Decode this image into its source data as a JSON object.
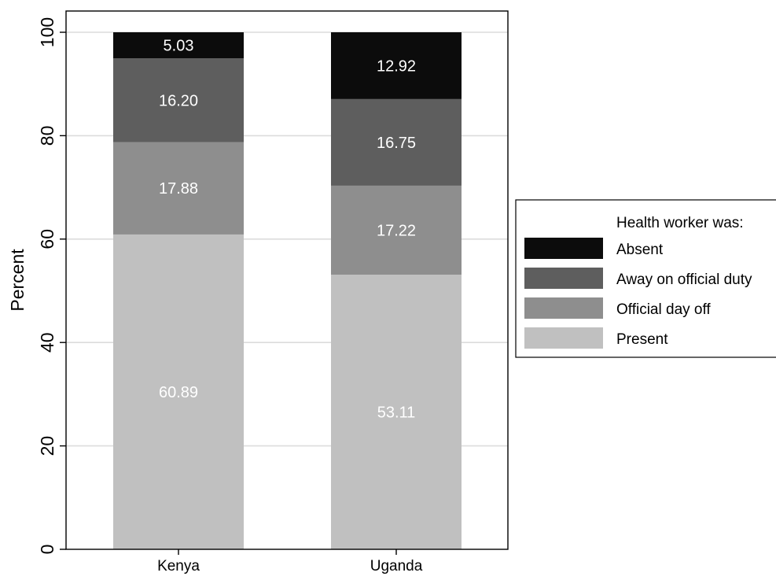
{
  "chart_data": {
    "type": "bar",
    "stacked": true,
    "categories": [
      "Kenya",
      "Uganda"
    ],
    "series": [
      {
        "name": "Present",
        "values": [
          60.89,
          53.11
        ],
        "color": "#c0c0c0"
      },
      {
        "name": "Official day off",
        "values": [
          17.88,
          17.22
        ],
        "color": "#8e8e8e"
      },
      {
        "name": "Away on official duty",
        "values": [
          16.2,
          16.75
        ],
        "color": "#5e5e5e"
      },
      {
        "name": "Absent",
        "values": [
          5.03,
          12.92
        ],
        "color": "#0c0c0c"
      }
    ],
    "data_labels": [
      [
        "60.89",
        "53.11"
      ],
      [
        "17.88",
        "17.22"
      ],
      [
        "16.20",
        "16.75"
      ],
      [
        "5.03",
        "12.92"
      ]
    ],
    "ylabel": "Percent",
    "xlabel": "",
    "ylim": [
      0,
      100
    ],
    "yticks": [
      0,
      20,
      40,
      60,
      80,
      100
    ],
    "grid": true,
    "legend": {
      "title": "Health worker was:",
      "placement": "right",
      "order": [
        "Absent",
        "Away on official duty",
        "Official day off",
        "Present"
      ]
    },
    "label_color": "#ffffff",
    "grid_color": "#dcdcdc"
  }
}
